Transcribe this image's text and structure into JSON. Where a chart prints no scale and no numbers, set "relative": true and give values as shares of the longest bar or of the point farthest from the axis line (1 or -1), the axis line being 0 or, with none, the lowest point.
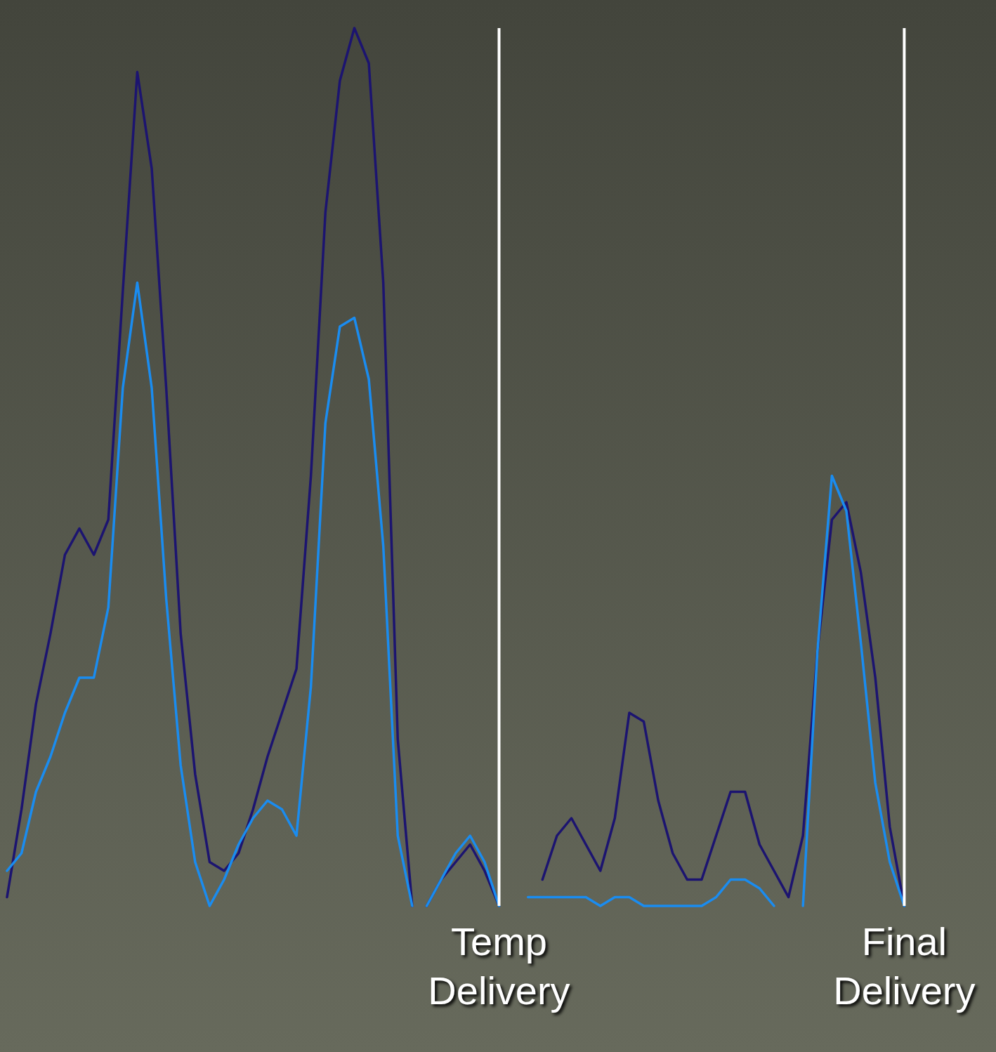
{
  "chart_data": {
    "type": "line",
    "relative": true,
    "categories": [
      null,
      null,
      null,
      null,
      null,
      null,
      null,
      null,
      null,
      null,
      null,
      null,
      null,
      null,
      null,
      null,
      null,
      null,
      null,
      null,
      null,
      null,
      null,
      null,
      null,
      null,
      null,
      null,
      null,
      null,
      null,
      null,
      null,
      null,
      "Temp Delivery",
      null,
      null,
      null,
      null,
      null,
      null,
      null,
      null,
      null,
      null,
      null,
      null,
      null,
      null,
      null,
      null,
      null,
      null,
      null,
      null,
      null,
      null,
      null,
      null,
      null,
      null,
      null,
      "Final Delivery",
      null,
      null,
      null,
      null,
      null,
      null
    ],
    "series": [
      {
        "color": "#1c1470",
        "values": [
          0.01,
          0.11,
          0.23,
          0.31,
          0.4,
          0.43,
          0.4,
          0.44,
          0.7,
          0.95,
          0.84,
          0.59,
          0.31,
          0.15,
          0.05,
          0.04,
          0.06,
          0.11,
          0.17,
          0.22,
          0.27,
          0.49,
          0.79,
          0.94,
          1.0,
          0.96,
          0.71,
          0.19,
          0,
          null,
          null,
          null,
          null,
          null,
          null,
          null,
          null,
          null,
          null,
          null,
          null,
          null,
          null,
          null,
          null,
          null,
          null,
          null,
          null,
          null,
          null,
          null,
          null,
          null,
          null,
          null,
          null,
          null,
          null,
          null,
          null,
          null,
          null,
          null,
          null,
          null,
          null,
          null,
          null
        ]
      },
      {
        "color": "#1c1470",
        "values": [
          null,
          null,
          null,
          null,
          null,
          null,
          null,
          null,
          null,
          null,
          null,
          null,
          null,
          null,
          null,
          null,
          null,
          null,
          null,
          null,
          null,
          null,
          null,
          null,
          null,
          null,
          null,
          null,
          null,
          0.0,
          0.03,
          0.05,
          0.07,
          0.04,
          0.0,
          null,
          null,
          null,
          null,
          null,
          null,
          null,
          null,
          null,
          null,
          null,
          null,
          null,
          null,
          null,
          null,
          null,
          null,
          null,
          null,
          null,
          null,
          null,
          null,
          null,
          null,
          null,
          null,
          null,
          null,
          null,
          null,
          null,
          null
        ]
      },
      {
        "color": "#1c1470",
        "values": [
          null,
          null,
          null,
          null,
          null,
          null,
          null,
          null,
          null,
          null,
          null,
          null,
          null,
          null,
          null,
          null,
          null,
          null,
          null,
          null,
          null,
          null,
          null,
          null,
          null,
          null,
          null,
          null,
          null,
          null,
          null,
          null,
          null,
          null,
          null,
          null,
          null,
          0.03,
          0.08,
          0.1,
          0.07,
          0.04,
          0.1,
          0.22,
          0.21,
          0.12,
          0.06,
          0.03,
          0.03,
          0.08,
          0.13,
          0.13,
          0.07,
          0.04,
          0.01,
          0.08,
          0.29,
          0.44,
          0.46,
          0.38,
          0.26,
          0.09,
          0.0,
          null,
          null,
          null,
          null,
          null,
          null
        ]
      },
      {
        "color": "#1a8cf0",
        "values": [
          0.04,
          0.06,
          0.13,
          0.17,
          0.22,
          0.26,
          0.26,
          0.34,
          0.59,
          0.71,
          0.59,
          0.35,
          0.16,
          0.05,
          0.0,
          0.03,
          0.07,
          0.1,
          0.12,
          0.11,
          0.08,
          0.25,
          0.55,
          0.66,
          0.67,
          0.6,
          0.41,
          0.08,
          0,
          null,
          null,
          null,
          null,
          null,
          null,
          null,
          null,
          null,
          null,
          null,
          null,
          null,
          null,
          null,
          null,
          null,
          null,
          null,
          null,
          null,
          null,
          null,
          null,
          null,
          null,
          null,
          null,
          null,
          null,
          null,
          null,
          null,
          null,
          null,
          null,
          null,
          null,
          null,
          null
        ]
      },
      {
        "color": "#1a8cf0",
        "values": [
          null,
          null,
          null,
          null,
          null,
          null,
          null,
          null,
          null,
          null,
          null,
          null,
          null,
          null,
          null,
          null,
          null,
          null,
          null,
          null,
          null,
          null,
          null,
          null,
          null,
          null,
          null,
          null,
          null,
          0.0,
          0.03,
          0.06,
          0.08,
          0.05,
          0.0,
          null,
          null,
          null,
          null,
          null,
          null,
          null,
          null,
          null,
          null,
          null,
          null,
          null,
          null,
          null,
          null,
          null,
          null,
          null,
          null,
          null,
          null,
          null,
          null,
          null,
          null,
          null,
          null,
          null,
          null,
          null,
          null,
          null,
          null
        ]
      },
      {
        "color": "#1a8cf0",
        "values": [
          null,
          null,
          null,
          null,
          null,
          null,
          null,
          null,
          null,
          null,
          null,
          null,
          null,
          null,
          null,
          null,
          null,
          null,
          null,
          null,
          null,
          null,
          null,
          null,
          null,
          null,
          null,
          null,
          null,
          null,
          null,
          null,
          null,
          null,
          null,
          null,
          0.01,
          0.01,
          0.01,
          0.01,
          0.01,
          0.0,
          0.01,
          0.01,
          0.0,
          0.0,
          0.0,
          0.0,
          0.0,
          0.01,
          0.03,
          0.03,
          0.02,
          0.0,
          null,
          null,
          null,
          null,
          null,
          null,
          null,
          null,
          null,
          null,
          null,
          null,
          null,
          null,
          null
        ]
      },
      {
        "color": "#1a8cf0",
        "values": [
          null,
          null,
          null,
          null,
          null,
          null,
          null,
          null,
          null,
          null,
          null,
          null,
          null,
          null,
          null,
          null,
          null,
          null,
          null,
          null,
          null,
          null,
          null,
          null,
          null,
          null,
          null,
          null,
          null,
          null,
          null,
          null,
          null,
          null,
          null,
          null,
          null,
          null,
          null,
          null,
          null,
          null,
          null,
          null,
          null,
          null,
          null,
          null,
          null,
          null,
          null,
          null,
          null,
          null,
          null,
          0.0,
          0.29,
          0.49,
          0.45,
          0.3,
          0.14,
          0.05,
          0.0,
          null,
          null,
          null,
          null,
          null,
          null
        ]
      }
    ],
    "ref_lines": [
      {
        "axis": "x",
        "value": "Temp Delivery",
        "color": "#ffffff"
      },
      {
        "axis": "x",
        "value": "Final Delivery",
        "color": "#ffffff"
      }
    ]
  }
}
